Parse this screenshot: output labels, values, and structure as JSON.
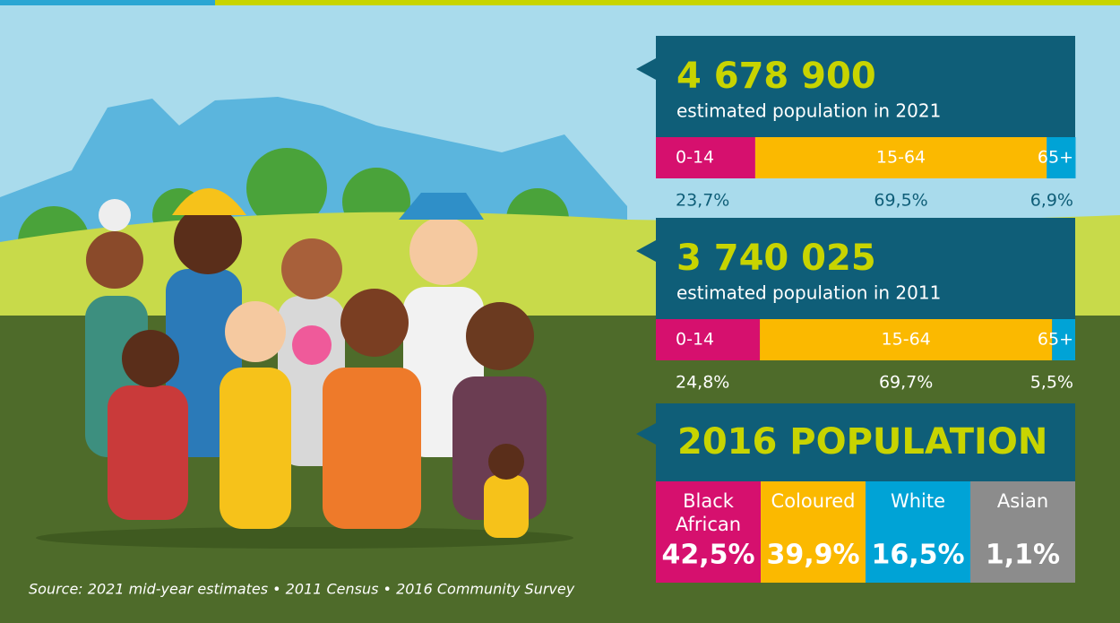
{
  "blocks": [
    {
      "title": "4 678 900",
      "subtitle": "estimated population in 2021",
      "segments": [
        {
          "label": "0-14",
          "value": 23.7,
          "value_label": "23,7%"
        },
        {
          "label": "15-64",
          "value": 69.5,
          "value_label": "69,5%"
        },
        {
          "label": "65+",
          "value": 6.9,
          "value_label": "6,9%"
        }
      ]
    },
    {
      "title": "3 740 025",
      "subtitle": "estimated population in 2011",
      "segments": [
        {
          "label": "0-14",
          "value": 24.8,
          "value_label": "24,8%"
        },
        {
          "label": "15-64",
          "value": 69.7,
          "value_label": "69,7%"
        },
        {
          "label": "65+",
          "value": 5.5,
          "value_label": "5,5%"
        }
      ]
    }
  ],
  "population_2016": {
    "title": "2016 POPULATION",
    "groups": [
      {
        "name": "Black African",
        "value_label": "42,5%"
      },
      {
        "name": "Coloured",
        "value_label": "39,9%"
      },
      {
        "name": "White",
        "value_label": "16,5%"
      },
      {
        "name": "Asian",
        "value_label": "1,1%"
      }
    ]
  },
  "source": "Source: 2021 mid-year estimates • 2011 Census • 2016 Community Survey"
}
